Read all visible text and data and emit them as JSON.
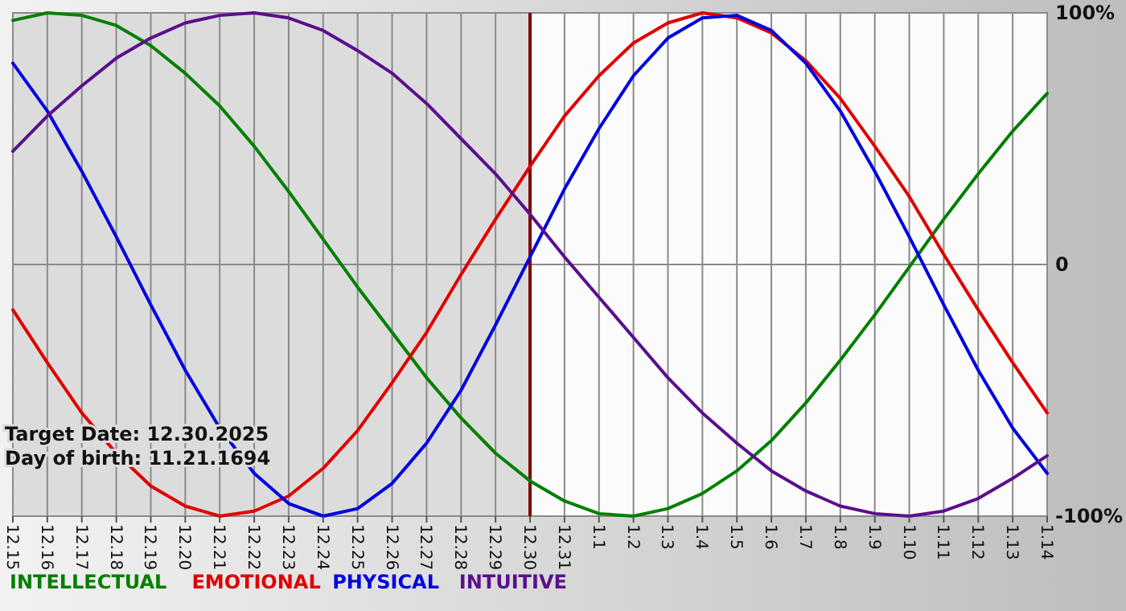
{
  "chart_data": {
    "type": "line",
    "categories": [
      "12.15",
      "12.16",
      "12.17",
      "12.18",
      "12.19",
      "12.20",
      "12.21",
      "12.22",
      "12.23",
      "12.24",
      "12.25",
      "12.26",
      "12.27",
      "12.28",
      "12.29",
      "12.30",
      "12.31",
      "1.1",
      "1.2",
      "1.3",
      "1.4",
      "1.5",
      "1.6",
      "1.7",
      "1.8",
      "1.9",
      "1.10",
      "1.11",
      "1.12",
      "1.13",
      "1.14"
    ],
    "series": [
      {
        "name": "INTELLECTUAL",
        "color": "#007f00",
        "values": [
          97,
          100,
          99,
          95,
          87,
          76,
          63,
          47,
          29,
          10,
          -9,
          -27,
          -45,
          -61,
          -75,
          -86,
          -94,
          -99,
          -100,
          -97,
          -91,
          -82,
          -70,
          -55,
          -38,
          -20,
          -1,
          18,
          36,
          53,
          68
        ]
      },
      {
        "name": "EMOTIONAL",
        "color": "#e00000",
        "values": [
          -18,
          -39,
          -59,
          -75,
          -88,
          -96,
          -100,
          -98,
          -92,
          -81,
          -66,
          -47,
          -27,
          -4,
          18,
          39,
          59,
          75,
          88,
          96,
          100,
          98,
          92,
          81,
          66,
          47,
          27,
          4,
          -18,
          -39,
          -59
        ]
      },
      {
        "name": "PHYSICAL",
        "color": "#0000e0",
        "values": [
          80,
          61,
          37,
          11,
          -16,
          -42,
          -65,
          -83,
          -95,
          -100,
          -97,
          -87,
          -71,
          -50,
          -24,
          3,
          30,
          54,
          75,
          90,
          98,
          99,
          93,
          80,
          61,
          37,
          11,
          -16,
          -42,
          -65,
          -83
        ]
      },
      {
        "name": "INTUITIVE",
        "color": "#5a0f8c",
        "values": [
          45,
          59,
          71,
          82,
          90,
          96,
          99,
          100,
          98,
          93,
          85,
          76,
          64,
          50,
          36,
          20,
          3,
          -13,
          -29,
          -45,
          -59,
          -71,
          -82,
          -90,
          -96,
          -99,
          -100,
          -98,
          -93,
          -85,
          -76
        ]
      }
    ],
    "ylim": [
      -100,
      100
    ],
    "yticks": [
      {
        "value": 100,
        "label": "100%"
      },
      0,
      {
        "value": -100,
        "label": "-100%"
      }
    ],
    "ref_lines": [
      {
        "axis": "x",
        "value": "12.30",
        "color": "#800000"
      }
    ],
    "bands": [
      {
        "axis": "x",
        "from": "12.15",
        "to": "12.30",
        "color": "#dcdcdc"
      }
    ],
    "annotations": [
      "Target Date: 12.30.2025",
      "Day of birth: 11.21.1694"
    ],
    "grid": true,
    "legend": "bottom",
    "line_style": "solid",
    "marker": "none"
  }
}
